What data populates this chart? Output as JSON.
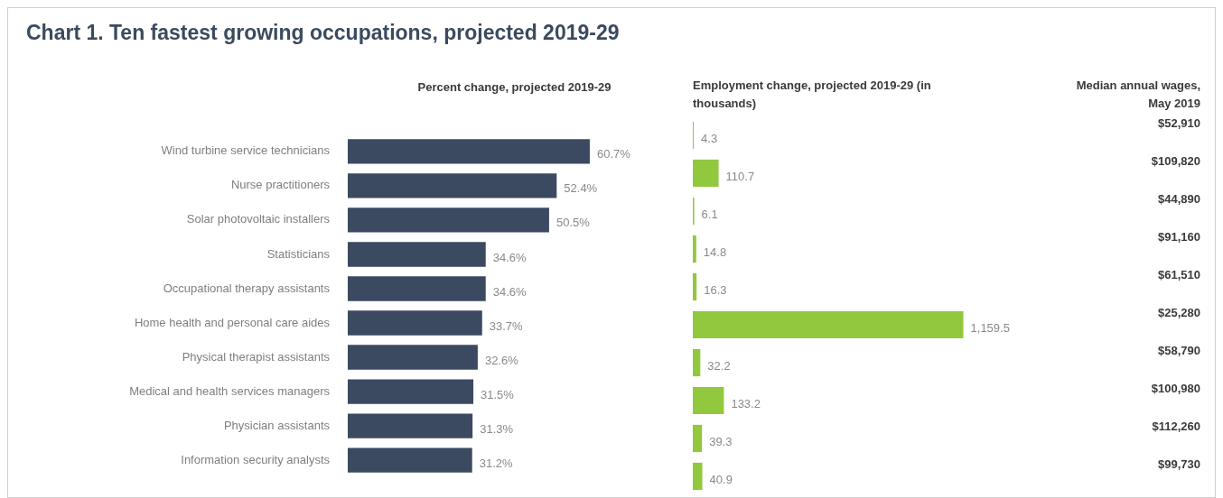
{
  "chart_data": [
    {
      "type": "bar",
      "title": "Chart 1. Ten fastest growing occupations, projected 2019-29",
      "subtitle": "Percent change, projected 2019-29",
      "orientation": "horizontal",
      "tick_labels": "y",
      "categories": [
        "Wind turbine service technicians",
        "Nurse practitioners",
        "Solar photovoltaic installers",
        "Statisticians",
        "Occupational therapy assistants",
        "Home health and personal care aides",
        "Physical therapist assistants",
        "Medical and health services managers",
        "Physician assistants",
        "Information security analysts"
      ],
      "values": [
        60.7,
        52.4,
        50.5,
        34.6,
        34.6,
        33.7,
        32.6,
        31.5,
        31.3,
        31.2
      ],
      "color": "#3b4a60",
      "value_labels": [
        "60.7%",
        "52.4%",
        "50.5%",
        "34.6%",
        "34.6%",
        "33.7%",
        "32.6%",
        "31.5%",
        "31.3%",
        "31.2%"
      ]
    },
    {
      "type": "bar",
      "title": "Employment change, projected 2019-29 (in thousands)",
      "orientation": "horizontal",
      "tick_labels": false,
      "categories": [
        null,
        null,
        null,
        null,
        null,
        null,
        null,
        null,
        null,
        null
      ],
      "values": [
        4.3,
        110.7,
        6.1,
        14.8,
        16.3,
        1159.5,
        32.2,
        133.2,
        39.3,
        40.9
      ],
      "color": "#92c83e",
      "value_labels": [
        "4.3",
        "110.7",
        "6.1",
        "14.8",
        "16.3",
        "1,159.5",
        "32.2",
        "133.2",
        "39.3",
        "40.9"
      ]
    },
    {
      "type": "other",
      "title": "Median annual wages, May 2019",
      "annotations": [
        "$52,910",
        "$109,820",
        "$44,890",
        "$91,160",
        "$61,510",
        "$25,280",
        "$58,790",
        "$100,980",
        "$112,260",
        "$99,730"
      ]
    }
  ]
}
